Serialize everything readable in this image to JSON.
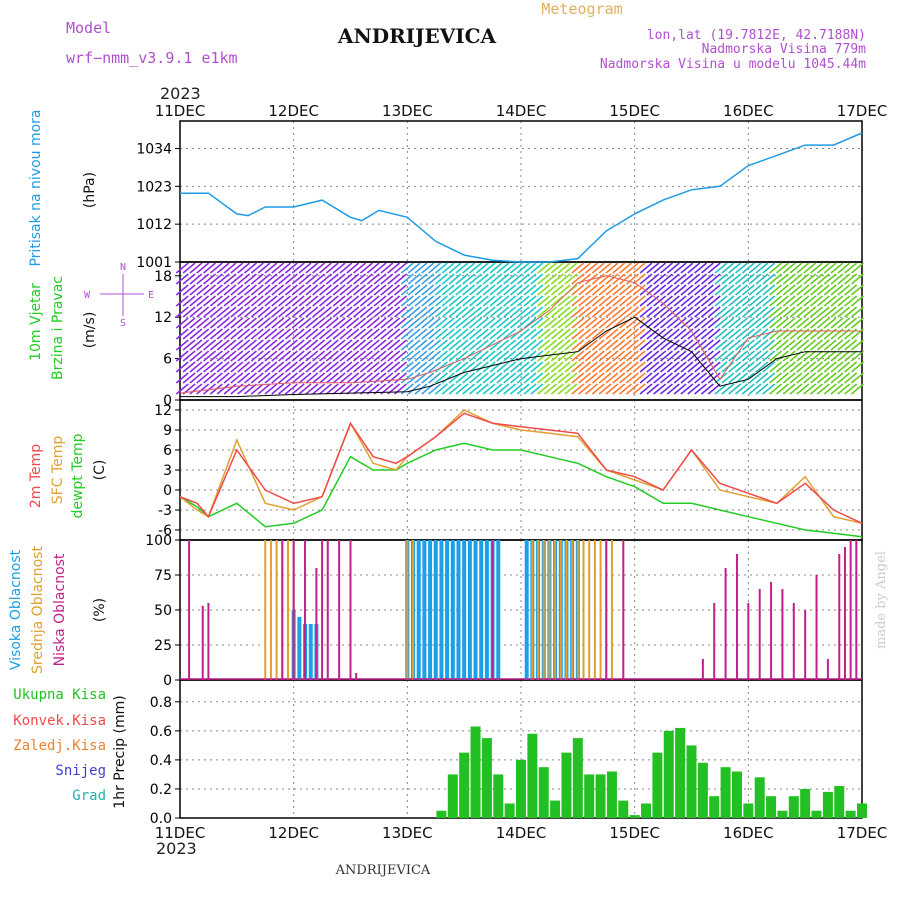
{
  "header": {
    "model_label": "Model",
    "model_name": "wrf−nmm_v3.9.1 e1km",
    "station": "ANDRIJEVICA",
    "meteogram_label": "Meteogram",
    "lonlat": "lon,lat (19.7812E, 42.7188N)",
    "altitude": "Nadmorska Visina 779m",
    "altitude_model": "Nadmorska Visina u modelu 1045.44m",
    "year": "2023",
    "footer_station": "ANDRIJEVICA",
    "credit": "made by Angel"
  },
  "colors": {
    "pressure": "#1e9be6",
    "temp2m": "#f04a4a",
    "sfc_temp": "#e0a030",
    "dewpt": "#22cc22",
    "high_cloud": "#1aa0e6",
    "mid_cloud": "#e0a030",
    "low_cloud": "#c0208a",
    "total_precip": "#22c022",
    "snow": "#4040d0",
    "model_text": "#b050d0",
    "meteogram_text": "#e0b060"
  },
  "chart_data": [
    {
      "type": "line",
      "panel": "pressure",
      "ylabel_lines": [
        "Pritisak na nivou mora"
      ],
      "unit": "(hPa)",
      "ylim": [
        1001,
        1042
      ],
      "yticks": [
        1001,
        1012,
        1023,
        1034
      ],
      "x_days": [
        0,
        0.25,
        0.5,
        0.6,
        0.75,
        1,
        1.25,
        1.5,
        1.6,
        1.75,
        2,
        2.25,
        2.5,
        2.75,
        3,
        3.25,
        3.5,
        3.75,
        4,
        4.25,
        4.5,
        4.75,
        5,
        5.25,
        5.5,
        5.75,
        6
      ],
      "series": [
        {
          "values": [
            1021,
            1021,
            1015,
            1014.5,
            1017,
            1017,
            1019,
            1014,
            1013,
            1016,
            1014,
            1007,
            1003,
            1001.5,
            1001,
            1001,
            1002,
            1010,
            1015,
            1019,
            1022,
            1023,
            1029,
            1032,
            1035,
            1035,
            1038.5
          ]
        }
      ]
    },
    {
      "type": "line",
      "panel": "wind",
      "ylabel_lines": [
        "10m Vjetar",
        "Brzina i Pravac"
      ],
      "unit": "(m/s)",
      "compass": [
        "N",
        "W",
        "E",
        "S"
      ],
      "ylim": [
        0,
        20
      ],
      "yticks": [
        0,
        6,
        12,
        18
      ],
      "x_days": [
        0,
        0.5,
        1,
        1.5,
        2,
        2.2,
        2.5,
        2.75,
        3,
        3.25,
        3.5,
        3.75,
        4,
        4.25,
        4.5,
        4.75,
        5,
        5.25,
        5.5,
        6
      ],
      "series": [
        {
          "values": [
            0.5,
            0.5,
            0.8,
            1,
            1.2,
            2,
            4,
            5,
            6,
            6.5,
            7,
            10,
            12,
            9,
            7,
            2,
            3,
            6,
            7,
            7
          ]
        },
        {
          "values": [
            1,
            2,
            2.5,
            2.5,
            3,
            4,
            6,
            8,
            10,
            13,
            17,
            18,
            17,
            14,
            10,
            3,
            9,
            10,
            10,
            10
          ]
        }
      ]
    },
    {
      "type": "line",
      "panel": "temperature",
      "ylabel_lines": [
        "2m Temp",
        "SFC Temp",
        "dewpt Temp"
      ],
      "unit": "(C)",
      "ylim": [
        -7.5,
        13.5
      ],
      "yticks": [
        -6,
        -3,
        0,
        3,
        6,
        9,
        12
      ],
      "x_days": [
        0,
        0.15,
        0.25,
        0.5,
        0.75,
        1,
        1.25,
        1.5,
        1.7,
        1.9,
        2,
        2.25,
        2.5,
        2.75,
        3,
        3.25,
        3.5,
        3.75,
        4,
        4.25,
        4.5,
        4.75,
        5,
        5.25,
        5.5,
        5.75,
        6
      ],
      "series": [
        {
          "name": "2m Temp",
          "values": [
            -1,
            -2,
            -4,
            6,
            0,
            -2,
            -1,
            10,
            5,
            4,
            5,
            8,
            11.5,
            10,
            9.5,
            9,
            8.5,
            3,
            2,
            0,
            6,
            1,
            -0.5,
            -2,
            1,
            -3,
            -5
          ]
        },
        {
          "name": "SFC Temp",
          "values": [
            -1,
            -3,
            -4,
            7.5,
            -2,
            -3,
            -1,
            10,
            4,
            3,
            5,
            8,
            12,
            10,
            9,
            8.5,
            8,
            3,
            1.5,
            0,
            6,
            0,
            -1,
            -2,
            2,
            -4,
            -5
          ]
        },
        {
          "name": "dewpt Temp",
          "values": [
            -1,
            -2.5,
            -4,
            -2,
            -5.5,
            -5,
            -3,
            5,
            3,
            3,
            4,
            6,
            7,
            6,
            6,
            5,
            4,
            2,
            0.5,
            -2,
            -2,
            -3,
            -4,
            -5,
            -6,
            -6.5,
            -7
          ]
        }
      ]
    },
    {
      "type": "bar",
      "panel": "clouds",
      "ylabel_lines": [
        "Visoka Oblacnost",
        "Srednja Oblacnost",
        "Niska Oblacnost"
      ],
      "unit": "(%)",
      "ylim": [
        0,
        100
      ],
      "yticks": [
        0,
        25,
        50,
        75,
        100
      ],
      "series": [
        {
          "name": "Visoka Oblacnost",
          "x_days": [
            1,
            1.05,
            1.1,
            1.15,
            1.2,
            2,
            2.05,
            2.1,
            2.15,
            2.2,
            2.25,
            2.3,
            2.35,
            2.4,
            2.45,
            2.5,
            2.55,
            2.6,
            2.65,
            2.7,
            2.75,
            2.8,
            3.05,
            3.1,
            3.15,
            3.2,
            3.25,
            3.3,
            3.35,
            3.4,
            3.45,
            3.5
          ],
          "values": [
            50,
            45,
            40,
            40,
            40,
            100,
            100,
            100,
            100,
            100,
            100,
            100,
            100,
            100,
            100,
            100,
            100,
            100,
            100,
            100,
            100,
            100,
            100,
            100,
            100,
            100,
            100,
            100,
            100,
            100,
            100,
            100
          ]
        },
        {
          "name": "Srednja Oblacnost",
          "x_days": [
            0.75,
            0.8,
            0.85,
            0.9,
            0.95,
            1.0,
            1.2,
            2.0,
            2.05,
            3.1,
            3.15,
            3.2,
            3.25,
            3.3,
            3.35,
            3.4,
            3.45,
            3.5,
            3.55,
            3.6,
            3.65,
            3.7,
            3.75,
            3.8
          ],
          "values": [
            100,
            100,
            100,
            100,
            100,
            100,
            25,
            100,
            100,
            100,
            100,
            100,
            100,
            100,
            100,
            100,
            100,
            100,
            100,
            100,
            100,
            100,
            100,
            100
          ]
        },
        {
          "name": "Niska Oblacnost",
          "x_days": [
            0.08,
            0.2,
            0.25,
            0.9,
            1.0,
            1.1,
            1.2,
            1.25,
            1.3,
            1.4,
            1.5,
            1.55,
            2.75,
            3.75,
            3.9,
            4.6,
            4.7,
            4.8,
            4.9,
            5.0,
            5.1,
            5.2,
            5.3,
            5.4,
            5.5,
            5.6,
            5.7,
            5.8,
            5.85,
            5.9,
            5.95
          ],
          "values": [
            100,
            53,
            55,
            100,
            100,
            100,
            80,
            100,
            100,
            100,
            100,
            5,
            100,
            100,
            100,
            15,
            55,
            80,
            90,
            55,
            65,
            70,
            65,
            55,
            50,
            75,
            15,
            90,
            95,
            100,
            100
          ]
        }
      ]
    },
    {
      "type": "bar",
      "panel": "precipitation",
      "legend": [
        "Ukupna Kisa",
        "Konvek.Kisa",
        "Zaledj.Kisa",
        "Snijeg",
        "Grad"
      ],
      "unit": "1hr Precip (mm)",
      "ylim": [
        0,
        0.95
      ],
      "yticks": [
        0,
        0.2,
        0.4,
        0.6,
        0.8
      ],
      "series": [
        {
          "name": "Ukupna Kisa",
          "x_days": [
            2.3,
            2.4,
            2.5,
            2.6,
            2.7,
            2.8,
            2.9,
            3.0,
            3.1,
            3.2,
            3.3,
            3.4,
            3.5,
            3.6,
            3.7,
            3.8,
            3.9,
            4.0,
            4.1,
            4.2,
            4.3,
            4.4,
            4.5,
            4.6,
            4.7,
            4.8,
            4.9,
            5.0,
            5.1,
            5.2,
            5.3,
            5.4,
            5.5,
            5.6,
            5.7,
            5.8,
            5.9,
            6.0
          ],
          "values": [
            0.05,
            0.3,
            0.45,
            0.63,
            0.55,
            0.3,
            0.1,
            0.4,
            0.58,
            0.35,
            0.12,
            0.45,
            0.55,
            0.3,
            0.3,
            0.32,
            0.12,
            0.02,
            0.1,
            0.45,
            0.6,
            0.62,
            0.5,
            0.38,
            0.15,
            0.35,
            0.32,
            0.1,
            0.28,
            0.15,
            0.05,
            0.15,
            0.2,
            0.05,
            0.18,
            0.22,
            0.05,
            0.1
          ]
        }
      ],
      "x_ticks": [
        "11DEC",
        "12DEC",
        "13DEC",
        "14DEC",
        "15DEC",
        "16DEC",
        "17DEC"
      ]
    }
  ]
}
